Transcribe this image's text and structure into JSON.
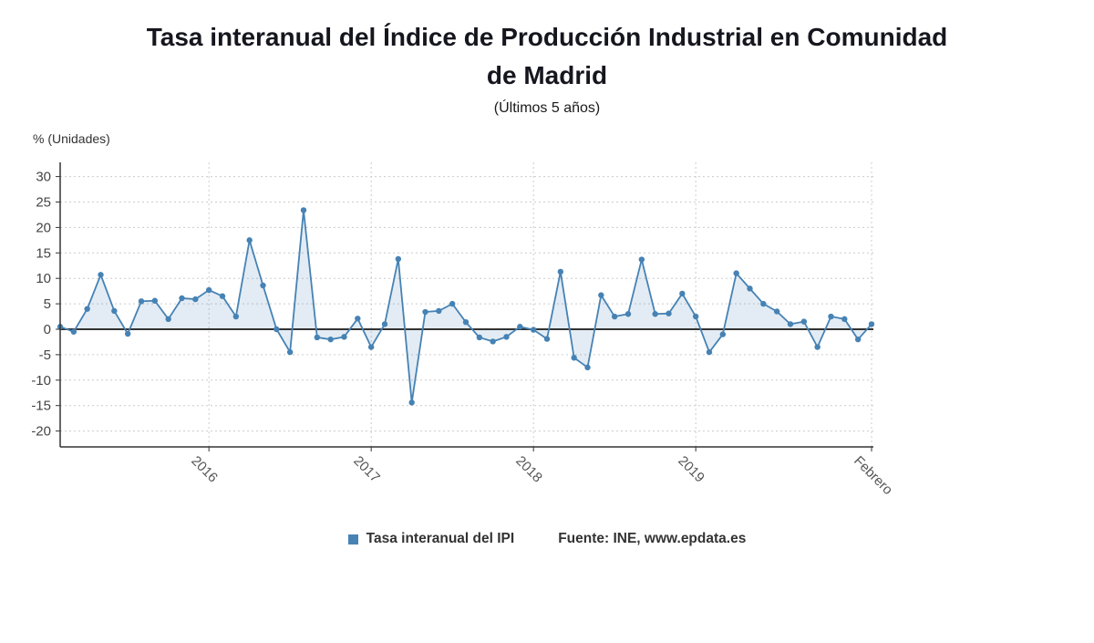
{
  "header": {
    "title_line1": "Tasa interanual del Índice de Producción Industrial en Comunidad",
    "title_line2": "de Madrid",
    "subtitle": "(Últimos 5 años)"
  },
  "legend": {
    "series_label": "Tasa interanual del IPI",
    "source": "Fuente: INE, www.epdata.es",
    "marker_color": "#4682b4"
  },
  "colors": {
    "line": "#4682b4",
    "area_fill": "rgba(70,130,180,0.15)",
    "zero_line": "#333333",
    "grid": "#cccccc",
    "axis": "#333333"
  },
  "chart_data": {
    "type": "area",
    "title": "Tasa interanual del Índice de Producción Industrial en Comunidad de Madrid",
    "subtitle": "(Últimos 5 años)",
    "series_name": "Tasa interanual del IPI",
    "xlabel": "",
    "ylabel": "% (Unidades)",
    "yticks": [
      30,
      25,
      20,
      15,
      10,
      5,
      0,
      -5,
      -10,
      -15,
      -20
    ],
    "ylim": [
      -23,
      33
    ],
    "grid": true,
    "markers": true,
    "legend_position": "bottom",
    "x": [
      "2015-02",
      "2015-03",
      "2015-04",
      "2015-05",
      "2015-06",
      "2015-07",
      "2015-08",
      "2015-09",
      "2015-10",
      "2015-11",
      "2015-12",
      "2016-01",
      "2016-02",
      "2016-03",
      "2016-04",
      "2016-05",
      "2016-06",
      "2016-07",
      "2016-08",
      "2016-09",
      "2016-10",
      "2016-11",
      "2016-12",
      "2017-01",
      "2017-02",
      "2017-03",
      "2017-04",
      "2017-05",
      "2017-06",
      "2017-07",
      "2017-08",
      "2017-09",
      "2017-10",
      "2017-11",
      "2017-12",
      "2018-01",
      "2018-02",
      "2018-03",
      "2018-04",
      "2018-05",
      "2018-06",
      "2018-07",
      "2018-08",
      "2018-09",
      "2018-10",
      "2018-11",
      "2018-12",
      "2019-01",
      "2019-02",
      "2019-03",
      "2019-04",
      "2019-05",
      "2019-06",
      "2019-07",
      "2019-08",
      "2019-09",
      "2019-10",
      "2019-11",
      "2019-12",
      "2020-01",
      "2020-02"
    ],
    "values": [
      0.5,
      -0.5,
      4.0,
      10.7,
      3.6,
      -0.9,
      5.5,
      5.6,
      2.0,
      6.1,
      5.9,
      7.7,
      6.5,
      2.5,
      17.5,
      8.6,
      0.0,
      -4.5,
      23.4,
      -1.6,
      -2.0,
      -1.5,
      2.1,
      -3.5,
      1.0,
      13.8,
      -14.4,
      3.4,
      3.6,
      5.0,
      1.4,
      -1.6,
      -2.4,
      -1.5,
      0.5,
      -0.1,
      -1.9,
      11.3,
      -5.6,
      -7.5,
      6.7,
      2.5,
      3.0,
      13.7,
      3.0,
      3.1,
      7.0,
      2.5,
      -4.5,
      -1.0,
      11.0,
      8.0,
      5.0,
      3.5,
      1.0,
      1.5,
      -3.5,
      2.5,
      2.0,
      -2.0,
      1.0
    ],
    "x_ticks": [
      {
        "index": 11,
        "label": "2016"
      },
      {
        "index": 23,
        "label": "2017"
      },
      {
        "index": 35,
        "label": "2018"
      },
      {
        "index": 47,
        "label": "2019"
      },
      {
        "index": 60,
        "label": "Febrero"
      }
    ]
  }
}
